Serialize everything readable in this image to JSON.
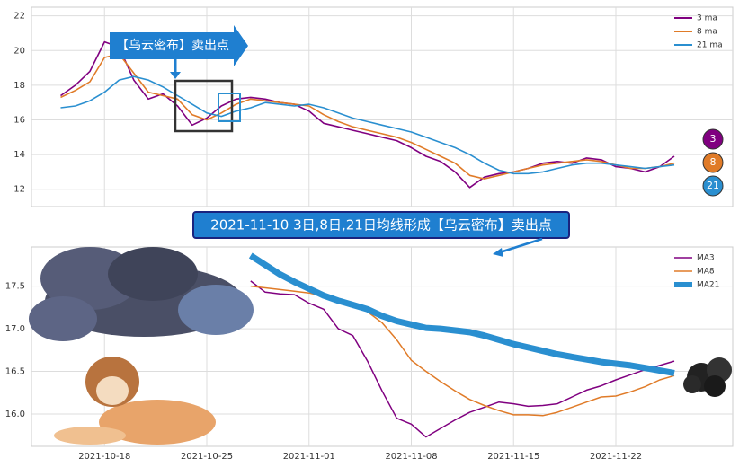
{
  "chart_data": [
    {
      "type": "line",
      "annotation": "【乌云密布】卖出点",
      "x": [
        "2021-10-15",
        "2021-10-16",
        "2021-10-17",
        "2021-10-18",
        "2021-10-19",
        "2021-10-20",
        "2021-10-21",
        "2021-10-22",
        "2021-10-23",
        "2021-10-24",
        "2021-10-25",
        "2021-10-26",
        "2021-10-27",
        "2021-10-28",
        "2021-10-29",
        "2021-10-30",
        "2021-10-31",
        "2021-11-01",
        "2021-11-02",
        "2021-11-03",
        "2021-11-04",
        "2021-11-05",
        "2021-11-06",
        "2021-11-07",
        "2021-11-08",
        "2021-11-09",
        "2021-11-10",
        "2021-11-11",
        "2021-11-12",
        "2021-11-13",
        "2021-11-14",
        "2021-11-15",
        "2021-11-16",
        "2021-11-17",
        "2021-11-18",
        "2021-11-19",
        "2021-11-20",
        "2021-11-21",
        "2021-11-22",
        "2021-11-23",
        "2021-11-24",
        "2021-11-25",
        "2021-11-26"
      ],
      "series": [
        {
          "name": "3 ma",
          "label": "3",
          "color": "#800080",
          "values": [
            17.4,
            18.0,
            18.8,
            20.5,
            20.2,
            18.3,
            17.2,
            17.5,
            16.8,
            15.7,
            16.1,
            16.8,
            17.2,
            17.3,
            17.2,
            17.0,
            16.9,
            16.5,
            15.8,
            15.6,
            15.4,
            15.2,
            15.0,
            14.8,
            14.4,
            13.9,
            13.6,
            13.0,
            12.1,
            12.7,
            12.9,
            13.0,
            13.2,
            13.5,
            13.6,
            13.5,
            13.8,
            13.7,
            13.3,
            13.2,
            13.0,
            13.3,
            13.9
          ]
        },
        {
          "name": "8 ma",
          "label": "8",
          "color": "#e07b28",
          "values": [
            17.3,
            17.7,
            18.2,
            19.6,
            19.8,
            18.7,
            17.6,
            17.4,
            17.2,
            16.3,
            16.0,
            16.4,
            16.9,
            17.2,
            17.1,
            17.0,
            16.9,
            16.8,
            16.3,
            15.9,
            15.6,
            15.4,
            15.2,
            15.0,
            14.7,
            14.3,
            13.9,
            13.5,
            12.8,
            12.6,
            12.8,
            13.0,
            13.2,
            13.4,
            13.5,
            13.6,
            13.7,
            13.6,
            13.4,
            13.2,
            13.2,
            13.3,
            13.5
          ]
        },
        {
          "name": "21 ma",
          "label": "21",
          "color": "#2a8fd0",
          "values": [
            16.7,
            16.8,
            17.1,
            17.6,
            18.3,
            18.5,
            18.3,
            17.9,
            17.4,
            16.9,
            16.4,
            16.2,
            16.5,
            16.7,
            17.0,
            16.9,
            16.8,
            16.9,
            16.7,
            16.4,
            16.1,
            15.9,
            15.7,
            15.5,
            15.3,
            15.0,
            14.7,
            14.4,
            14.0,
            13.5,
            13.1,
            12.9,
            12.9,
            13.0,
            13.2,
            13.4,
            13.5,
            13.5,
            13.4,
            13.3,
            13.2,
            13.3,
            13.4
          ]
        }
      ],
      "xlim": [
        "2021-10-13",
        "2021-11-30"
      ],
      "ylim": [
        11,
        22.5
      ],
      "yticks": [
        12,
        14,
        16,
        18,
        20,
        22
      ],
      "grid": true,
      "legend": "upper right"
    },
    {
      "type": "line",
      "annotation": "2021-11-10 3日,8日,21日均线形成【乌云密布】卖出点",
      "x": [
        "2021-10-28",
        "2021-10-29",
        "2021-10-30",
        "2021-10-31",
        "2021-11-01",
        "2021-11-02",
        "2021-11-03",
        "2021-11-04",
        "2021-11-05",
        "2021-11-06",
        "2021-11-07",
        "2021-11-08",
        "2021-11-09",
        "2021-11-10",
        "2021-11-11",
        "2021-11-12",
        "2021-11-13",
        "2021-11-14",
        "2021-11-15",
        "2021-11-16",
        "2021-11-17",
        "2021-11-18",
        "2021-11-19",
        "2021-11-20",
        "2021-11-21",
        "2021-11-22",
        "2021-11-23",
        "2021-11-24",
        "2021-11-25",
        "2021-11-26"
      ],
      "series": [
        {
          "name": "MA3",
          "color": "#800080",
          "width": 1.5,
          "values": [
            17.56,
            17.43,
            17.41,
            17.4,
            17.3,
            17.23,
            17.0,
            16.92,
            16.62,
            16.27,
            15.95,
            15.88,
            15.73,
            15.83,
            15.93,
            16.02,
            16.08,
            16.14,
            16.12,
            16.09,
            16.1,
            16.12,
            16.2,
            16.28,
            16.33,
            16.4,
            16.46,
            16.52,
            16.57,
            16.62
          ]
        },
        {
          "name": "MA8",
          "color": "#e07b28",
          "width": 1.5,
          "values": [
            17.5,
            17.48,
            17.46,
            17.44,
            17.42,
            17.38,
            17.33,
            17.28,
            17.2,
            17.07,
            16.87,
            16.63,
            16.5,
            16.38,
            16.27,
            16.17,
            16.1,
            16.04,
            15.99,
            15.99,
            15.98,
            16.02,
            16.08,
            16.14,
            16.2,
            16.21,
            16.26,
            16.32,
            16.4,
            16.45
          ]
        },
        {
          "name": "MA21",
          "color": "#2a8fd0",
          "width": 7,
          "values": [
            17.86,
            17.75,
            17.64,
            17.55,
            17.47,
            17.39,
            17.33,
            17.28,
            17.23,
            17.15,
            17.09,
            17.05,
            17.01,
            17.0,
            16.98,
            16.96,
            16.92,
            16.87,
            16.82,
            16.78,
            16.74,
            16.7,
            16.67,
            16.64,
            16.61,
            16.59,
            16.57,
            16.54,
            16.51,
            16.48
          ]
        }
      ],
      "xlim": [
        "2021-10-13",
        "2021-11-30"
      ],
      "xticks": [
        "2021-10-18",
        "2021-10-25",
        "2021-11-01",
        "2021-11-08",
        "2021-11-15",
        "2021-11-22"
      ],
      "ylim": [
        15.62,
        17.96
      ],
      "yticks": [
        {
          "value": 16,
          "label": "16.0"
        },
        16.5,
        {
          "value": 17,
          "label": "17.0"
        },
        17.5
      ],
      "grid": true,
      "legend": "upper right"
    }
  ]
}
